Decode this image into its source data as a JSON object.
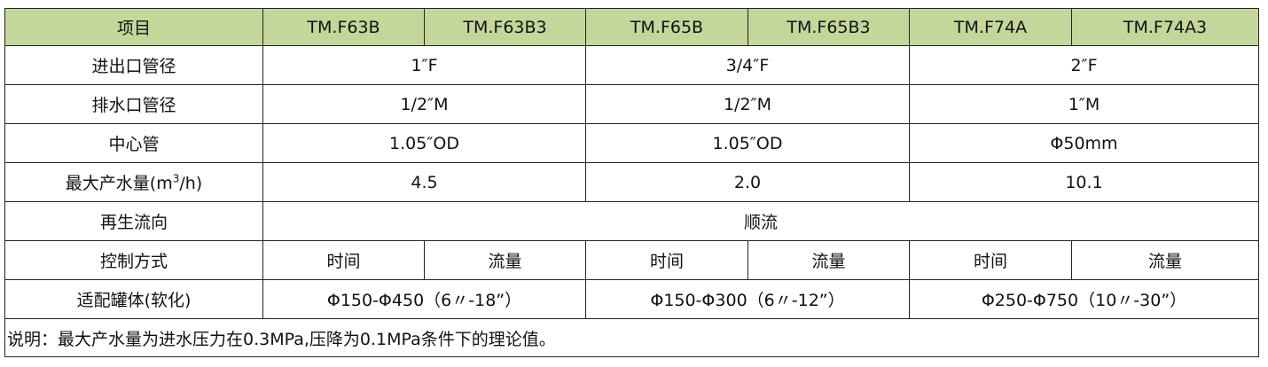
{
  "header": [
    "项目",
    "TM.F63B",
    "TM.F63B3",
    "TM.F65B",
    "TM.F65B3",
    "TM.F74A",
    "TM.F74A3"
  ],
  "rows": {
    "inlet": {
      "label": "进出口管径",
      "v1": "1″F",
      "v2": "3/4″F",
      "v3": "2″F"
    },
    "drain": {
      "label": "排水口管径",
      "v1": "1/2″M",
      "v2": "1/2″M",
      "v3": "1″M"
    },
    "center": {
      "label": "中心管",
      "v1": "1.05″OD",
      "v2": "1.05″OD",
      "v3": "Φ50mm"
    },
    "flow": {
      "label_pre": "最大产水量(m",
      "label_sup": "3",
      "label_post": "/h)",
      "v1": "4.5",
      "v2": "2.0",
      "v3": "10.1"
    },
    "regen": {
      "label": "再生流向",
      "value": "顺流"
    },
    "control": {
      "label": "控制方式",
      "values": [
        "时间",
        "流量",
        "时间",
        "流量",
        "时间",
        "流量"
      ]
    },
    "tank": {
      "label": "适配罐体(软化)",
      "v1": "Φ150-Φ450（6〃-18”）",
      "v2": "Φ150-Φ300（6〃-12”）",
      "v3": "Φ250-Φ750（10〃-30”）"
    }
  },
  "note": "说明：最大产水量为进水压力在0.3MPa,压降为0.1MPa条件下的理论值。",
  "colors": {
    "header_bg": "#c4d79b"
  }
}
